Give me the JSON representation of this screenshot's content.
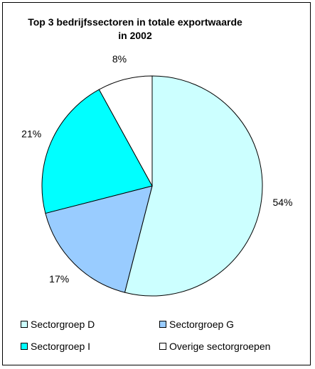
{
  "chart_data": {
    "type": "pie",
    "title_lines": [
      "Top 3 bedrijfssectoren in totale exportwaarde",
      "in 2002"
    ],
    "slices": [
      {
        "name": "Sectorgroep D",
        "value": 54,
        "label": "54%",
        "color": "#ccffff"
      },
      {
        "name": "Sectorgroep G",
        "value": 17,
        "label": "17%",
        "color": "#99ccff"
      },
      {
        "name": "Sectorgroep I",
        "value": 21,
        "label": "21%",
        "color": "#00ffff"
      },
      {
        "name": "Overige sectorgroepen",
        "value": 8,
        "label": "8%",
        "color": "#ffffff"
      }
    ],
    "start": "top",
    "direction": "clockwise",
    "legend_position": "bottom"
  }
}
